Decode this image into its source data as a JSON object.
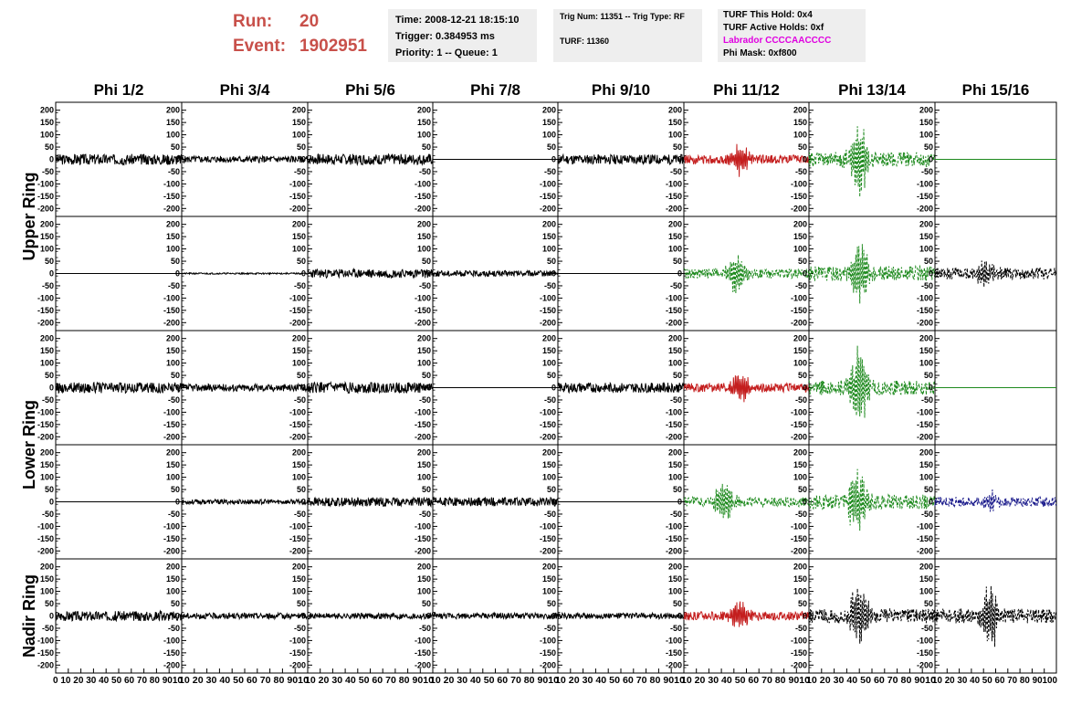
{
  "header": {
    "run_label": "Run:",
    "run_value": "20",
    "event_label": "Event:",
    "event_value": "1902951",
    "time": "Time: 2008-12-21 18:15:10",
    "trigger": "Trigger: 0.384953 ms",
    "priority": "Priority: 1 -- Queue: 1",
    "trig_num": "Trig Num: 11351 -- Trig Type: RF",
    "turf": "TURF: 11360",
    "turf_hold": "TURF This Hold: 0x4",
    "turf_active": "TURF Active Holds: 0xf",
    "labrador": "Labrador CCCCAACCCC",
    "phi_mask": "Phi Mask: 0xf800",
    "labrador_color": "#e000e0",
    "run_color": "#c8504a"
  },
  "chart_data": {
    "type": "line",
    "columns": [
      "Phi 1/2",
      "Phi 3/4",
      "Phi 5/6",
      "Phi 7/8",
      "Phi 9/10",
      "Phi 11/12",
      "Phi 13/14",
      "Phi 15/16"
    ],
    "row_groups": [
      {
        "label": "Upper Ring",
        "rows": 2
      },
      {
        "label": "Lower Ring",
        "rows": 2
      },
      {
        "label": "Nadir Ring",
        "rows": 1
      }
    ],
    "xlim": [
      0,
      100
    ],
    "ylim": [
      -210,
      210
    ],
    "x_ticks": [
      "0",
      "10",
      "20",
      "30",
      "40",
      "50",
      "60",
      "70",
      "80",
      "90",
      "100"
    ],
    "x_tick_labels_compressed": [
      "0 10 20 30 40 50 60 70 80 9010",
      "10 20 30 40 50 60 70 80 9010",
      "10 20 30 40 50 60 70 80 9010",
      "10 20 30 40 50 60 70 80 9010",
      "10 20 30 40 50 60 70 80 9010",
      "10 20 30 40 50 60 70 80 9010",
      "10 20 30 40 50 60 70 80 9010",
      "10 20 30 40 50 60 70 80 90100"
    ],
    "y_ticks": [
      "200",
      "150",
      "100",
      "50",
      "0",
      "-50",
      "-100",
      "-150",
      "-200"
    ],
    "colors": {
      "k": "#000000",
      "r": "#c41e1e",
      "g": "#1e8a1e",
      "b": "#1c1c8c"
    },
    "cells": [
      [
        {
          "c": "k",
          "s": "solid",
          "amp": 22,
          "seed": 3
        },
        {
          "c": "k",
          "s": "solid",
          "amp": 14,
          "seed": 5
        },
        {
          "c": "k",
          "s": "solid",
          "amp": 22,
          "seed": 7
        },
        {
          "c": "k",
          "s": "solid",
          "amp": 0,
          "seed": 9
        },
        {
          "c": "k",
          "s": "solid",
          "amp": 20,
          "seed": 11
        },
        {
          "c": "r",
          "s": "solid",
          "amp": 18,
          "burst": 70,
          "peak": 45,
          "seed": 13
        },
        {
          "c": "g",
          "s": "dash",
          "amp": 30,
          "burst": 160,
          "peak": 40,
          "seed": 15
        },
        {
          "c": "g",
          "s": "solid",
          "amp": 0,
          "seed": 17
        }
      ],
      [
        {
          "c": "k",
          "s": "solid",
          "amp": 0,
          "seed": 19
        },
        {
          "c": "k",
          "s": "solid",
          "amp": 3,
          "seed": 21
        },
        {
          "c": "k",
          "s": "solid",
          "amp": 18,
          "seed": 23
        },
        {
          "c": "k",
          "s": "solid",
          "amp": 12,
          "seed": 25
        },
        {
          "c": "k",
          "s": "solid",
          "amp": 0,
          "seed": 27
        },
        {
          "c": "g",
          "s": "dash",
          "amp": 20,
          "burst": 90,
          "peak": 42,
          "seed": 29
        },
        {
          "c": "g",
          "s": "dash",
          "amp": 30,
          "burst": 150,
          "peak": 40,
          "seed": 31
        },
        {
          "c": "k",
          "s": "dash",
          "amp": 24,
          "burst": 60,
          "peak": 42,
          "seed": 33
        }
      ],
      [
        {
          "c": "k",
          "s": "solid",
          "amp": 22,
          "seed": 35
        },
        {
          "c": "k",
          "s": "solid",
          "amp": 15,
          "seed": 37
        },
        {
          "c": "k",
          "s": "solid",
          "amp": 22,
          "seed": 39
        },
        {
          "c": "k",
          "s": "solid",
          "amp": 0,
          "seed": 41
        },
        {
          "c": "k",
          "s": "solid",
          "amp": 20,
          "seed": 43
        },
        {
          "c": "r",
          "s": "solid",
          "amp": 18,
          "burst": 70,
          "peak": 45,
          "seed": 45
        },
        {
          "c": "g",
          "s": "dash",
          "amp": 30,
          "burst": 170,
          "peak": 40,
          "seed": 47
        },
        {
          "c": "g",
          "s": "solid",
          "amp": 0,
          "seed": 49
        }
      ],
      [
        {
          "c": "k",
          "s": "solid",
          "amp": 0,
          "seed": 51
        },
        {
          "c": "k",
          "s": "solid",
          "amp": 10,
          "seed": 53
        },
        {
          "c": "k",
          "s": "solid",
          "amp": 18,
          "seed": 55
        },
        {
          "c": "k",
          "s": "solid",
          "amp": 18,
          "seed": 57
        },
        {
          "c": "k",
          "s": "solid",
          "amp": 0,
          "seed": 59
        },
        {
          "c": "g",
          "s": "dash",
          "amp": 20,
          "burst": 90,
          "peak": 32,
          "seed": 61
        },
        {
          "c": "g",
          "s": "dash",
          "amp": 30,
          "burst": 140,
          "peak": 38,
          "seed": 63
        },
        {
          "c": "b",
          "s": "dash",
          "amp": 20,
          "burst": 40,
          "peak": 45,
          "seed": 65
        }
      ],
      [
        {
          "c": "k",
          "s": "solid",
          "amp": 20,
          "seed": 67
        },
        {
          "c": "k",
          "s": "solid",
          "amp": 12,
          "seed": 69
        },
        {
          "c": "k",
          "s": "solid",
          "amp": 12,
          "seed": 71
        },
        {
          "c": "k",
          "s": "solid",
          "amp": 12,
          "seed": 73
        },
        {
          "c": "k",
          "s": "solid",
          "amp": 12,
          "seed": 75
        },
        {
          "c": "r",
          "s": "solid",
          "amp": 18,
          "burst": 70,
          "peak": 45,
          "seed": 77
        },
        {
          "c": "k",
          "s": "dash",
          "amp": 30,
          "burst": 140,
          "peak": 40,
          "seed": 79
        },
        {
          "c": "k",
          "s": "dash",
          "amp": 30,
          "burst": 150,
          "peak": 45,
          "seed": 81
        }
      ]
    ]
  }
}
